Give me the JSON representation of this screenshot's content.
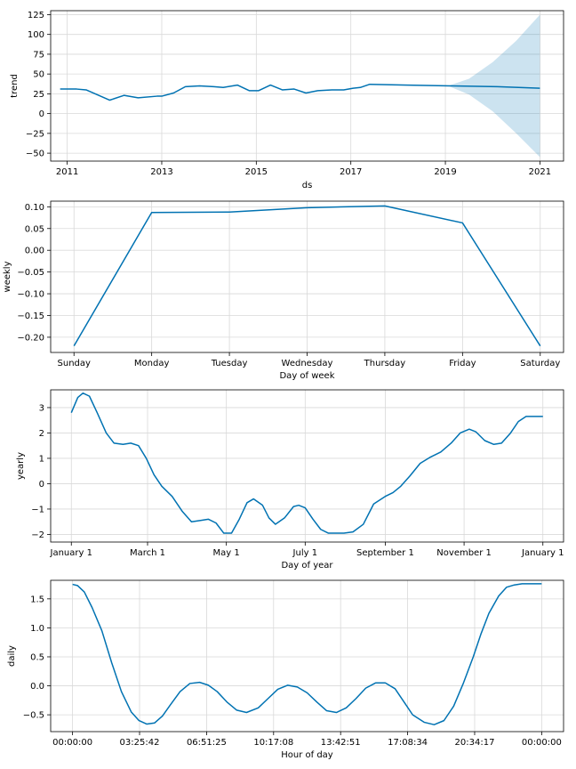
{
  "chart_data": [
    {
      "id": "trend",
      "type": "line",
      "xlabel": "ds",
      "ylabel": "trend",
      "xlim": [
        2010.65,
        2021.5
      ],
      "ylim": [
        -60,
        130
      ],
      "xticks": [
        2011,
        2013,
        2015,
        2017,
        2019,
        2021
      ],
      "xtick_labels": [
        "2011",
        "2013",
        "2015",
        "2017",
        "2019",
        "2021"
      ],
      "yticks": [
        -50,
        -25,
        0,
        25,
        50,
        75,
        100,
        125
      ],
      "ytick_labels": [
        "−50",
        "−25",
        "0",
        "25",
        "50",
        "75",
        "100",
        "125"
      ],
      "grid": true,
      "series": [
        {
          "x": [
            2010.85,
            2011.2,
            2011.4,
            2011.9,
            2012.2,
            2012.5,
            2012.9,
            2013.0,
            2013.25,
            2013.5,
            2013.8,
            2014.1,
            2014.3,
            2014.6,
            2014.85,
            2015.05,
            2015.3,
            2015.55,
            2015.8,
            2016.05,
            2016.3,
            2016.6,
            2016.85,
            2017.05,
            2017.2,
            2017.4,
            2018.2,
            2019.1,
            2020.1,
            2021.0
          ],
          "y": [
            31,
            31,
            30,
            17,
            23,
            20,
            22,
            22,
            26,
            34,
            35,
            34,
            33,
            36,
            29,
            29,
            36,
            30,
            31,
            26,
            29,
            30,
            30,
            32,
            33,
            37,
            36,
            35,
            34,
            32
          ]
        }
      ],
      "band": {
        "x": [
          2019.1,
          2019.5,
          2020.0,
          2020.5,
          2021.0
        ],
        "upper": [
          36,
          44,
          65,
          92,
          125
        ],
        "lower": [
          34,
          24,
          3,
          -25,
          -55
        ]
      }
    },
    {
      "id": "weekly",
      "type": "line",
      "xlabel": "Day of week",
      "ylabel": "weekly",
      "categories": [
        "Sunday",
        "Monday",
        "Tuesday",
        "Wednesday",
        "Thursday",
        "Friday",
        "Saturday"
      ],
      "xlim": [
        -0.3,
        6.3
      ],
      "ylim": [
        -0.235,
        0.113
      ],
      "yticks": [
        -0.2,
        -0.15,
        -0.1,
        -0.05,
        0.0,
        0.05,
        0.1
      ],
      "ytick_labels": [
        "−0.20",
        "−0.15",
        "−0.10",
        "−0.05",
        "0.00",
        "0.05",
        "0.10"
      ],
      "grid": true,
      "series": [
        {
          "x": [
            0,
            1,
            2,
            3,
            4,
            5,
            6
          ],
          "y": [
            -0.22,
            0.087,
            0.088,
            0.098,
            0.102,
            0.063,
            -0.22
          ]
        }
      ]
    },
    {
      "id": "yearly",
      "type": "line",
      "xlabel": "Day of year",
      "ylabel": "yearly",
      "xlim": [
        -16,
        381
      ],
      "ylim": [
        -2.3,
        3.7
      ],
      "xticks": [
        0,
        59,
        120,
        181,
        243,
        304,
        365
      ],
      "xtick_labels": [
        "January 1",
        "March 1",
        "May 1",
        "July 1",
        "September 1",
        "November 1",
        "January 1"
      ],
      "yticks": [
        -2,
        -1,
        0,
        1,
        2,
        3
      ],
      "ytick_labels": [
        "−2",
        "−1",
        "0",
        "1",
        "2",
        "3"
      ],
      "grid": true,
      "series": [
        {
          "x": [
            0,
            5,
            9,
            14,
            20,
            27,
            33,
            40,
            46,
            52,
            58,
            64,
            70,
            78,
            86,
            93,
            100,
            106,
            112,
            118,
            124,
            130,
            136,
            141,
            148,
            153,
            158,
            165,
            172,
            176,
            181,
            187,
            193,
            199,
            204,
            211,
            218,
            226,
            234,
            243,
            249,
            255,
            262,
            270,
            278,
            286,
            294,
            301,
            308,
            313,
            320,
            327,
            333,
            340,
            346,
            352,
            358,
            363,
            365
          ],
          "y": [
            2.8,
            3.4,
            3.57,
            3.45,
            2.8,
            2.0,
            1.6,
            1.55,
            1.6,
            1.5,
            1.0,
            0.35,
            -0.1,
            -0.5,
            -1.1,
            -1.5,
            -1.45,
            -1.4,
            -1.55,
            -1.95,
            -1.95,
            -1.4,
            -0.75,
            -0.6,
            -0.85,
            -1.35,
            -1.6,
            -1.35,
            -0.9,
            -0.85,
            -0.95,
            -1.4,
            -1.8,
            -1.95,
            -1.95,
            -1.95,
            -1.9,
            -1.6,
            -0.8,
            -0.5,
            -0.35,
            -0.1,
            0.3,
            0.8,
            1.05,
            1.25,
            1.6,
            2.0,
            2.15,
            2.05,
            1.7,
            1.55,
            1.6,
            2.0,
            2.45,
            2.65,
            2.65,
            2.65,
            2.65
          ]
        }
      ]
    },
    {
      "id": "daily",
      "type": "line",
      "xlabel": "Hour of day",
      "ylabel": "daily",
      "xlim": [
        -1.12,
        25.12
      ],
      "ylim": [
        -0.79,
        1.82
      ],
      "xticks": [
        0,
        3.4283,
        6.857,
        10.2856,
        13.7142,
        17.1428,
        20.5714,
        24
      ],
      "xtick_labels": [
        "00:00:00",
        "03:25:42",
        "06:51:25",
        "10:17:08",
        "13:42:51",
        "17:08:34",
        "20:34:17",
        "00:00:00"
      ],
      "yticks": [
        -0.5,
        0.0,
        0.5,
        1.0,
        1.5
      ],
      "ytick_labels": [
        "−0.5",
        "0.0",
        "0.5",
        "1.0",
        "1.5"
      ],
      "grid": true,
      "series": [
        {
          "x": [
            0,
            0.25,
            0.6,
            1.0,
            1.5,
            2.0,
            2.5,
            3.0,
            3.4,
            3.8,
            4.2,
            4.6,
            5.0,
            5.5,
            6.0,
            6.5,
            6.95,
            7.4,
            7.9,
            8.4,
            8.9,
            9.5,
            10.0,
            10.5,
            11.0,
            11.5,
            12.0,
            12.5,
            13.0,
            13.5,
            14.0,
            14.5,
            15.0,
            15.5,
            16.0,
            16.5,
            17.0,
            17.4,
            18.0,
            18.5,
            19.0,
            19.5,
            20.0,
            20.5,
            20.9,
            21.3,
            21.8,
            22.2,
            22.6,
            23.0,
            23.4,
            23.8,
            24.0
          ],
          "y": [
            1.75,
            1.73,
            1.62,
            1.35,
            0.95,
            0.4,
            -0.1,
            -0.45,
            -0.6,
            -0.66,
            -0.64,
            -0.52,
            -0.33,
            -0.1,
            0.04,
            0.06,
            0.01,
            -0.1,
            -0.28,
            -0.42,
            -0.46,
            -0.38,
            -0.22,
            -0.06,
            0.01,
            -0.02,
            -0.12,
            -0.28,
            -0.43,
            -0.46,
            -0.38,
            -0.22,
            -0.04,
            0.05,
            0.05,
            -0.05,
            -0.3,
            -0.5,
            -0.63,
            -0.67,
            -0.6,
            -0.35,
            0.05,
            0.5,
            0.9,
            1.25,
            1.55,
            1.7,
            1.74,
            1.76,
            1.76,
            1.76,
            1.76
          ]
        }
      ]
    }
  ]
}
